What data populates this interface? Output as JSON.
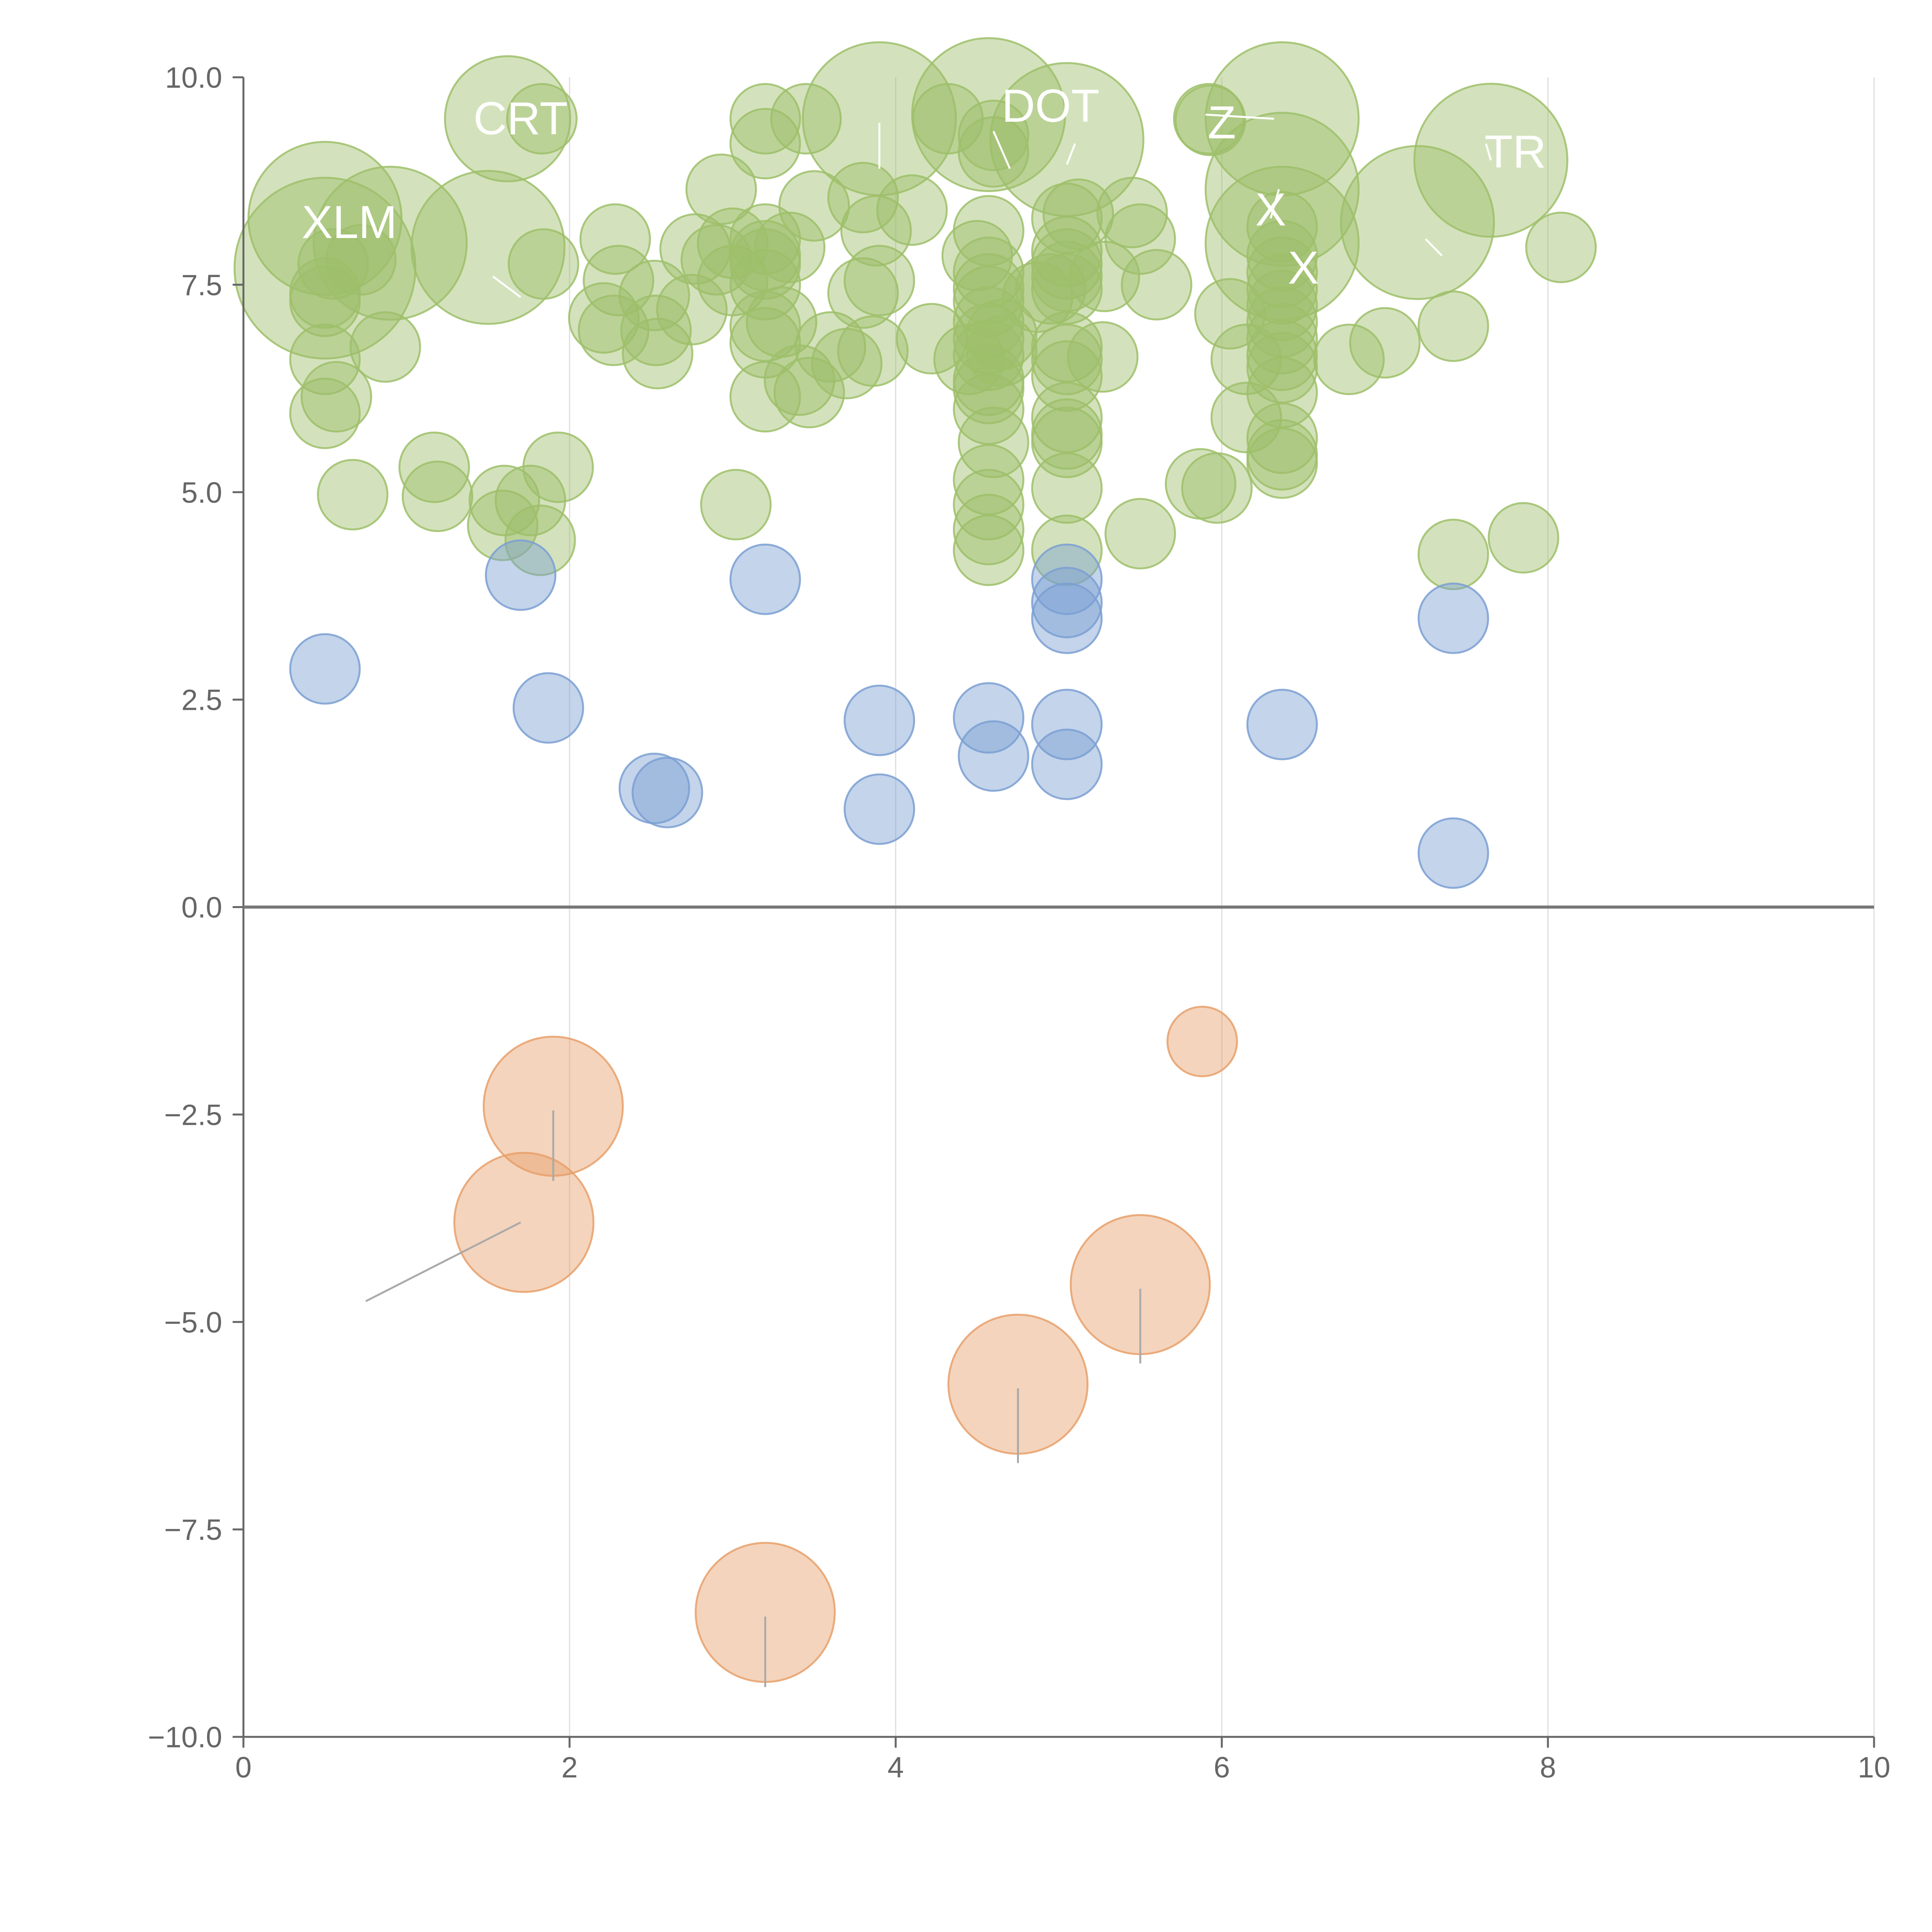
{
  "chart_data": {
    "type": "scatter",
    "title": "",
    "xlabel": "",
    "ylabel": "",
    "xlim": [
      0,
      10
    ],
    "ylim": [
      -10,
      10
    ],
    "x_ticks": [
      0,
      2,
      4,
      6,
      8,
      10
    ],
    "y_ticks": [
      -10,
      -7.5,
      -5,
      -2.5,
      0,
      2.5,
      5,
      7.5,
      10
    ],
    "x_tick_labels": [
      "0",
      "2",
      "4",
      "6",
      "8",
      "10"
    ],
    "y_tick_labels": [
      "−10.0",
      "−7.5",
      "−5.0",
      "−2.5",
      "0.0",
      "2.5",
      "5.0",
      "7.5",
      "10.0"
    ],
    "grid": "vertical",
    "legend": "none",
    "colors": {
      "green": "#9dbf6a",
      "blue": "#7b9fd2",
      "orange": "#e7a06b",
      "axis": "#666666",
      "grid": "#dddddd",
      "zero_line": "#777777"
    },
    "series": [
      {
        "color": "green",
        "points": [
          [
            0.5,
            8.3,
            1.1
          ],
          [
            0.5,
            7.7,
            1.3
          ],
          [
            0.55,
            7.75,
            0.5
          ],
          [
            0.5,
            7.4,
            0.5
          ],
          [
            0.5,
            7.3,
            0.5
          ],
          [
            0.5,
            6.6,
            0.5
          ],
          [
            0.57,
            6.15,
            0.5
          ],
          [
            0.5,
            5.95,
            0.5
          ],
          [
            0.72,
            7.8,
            0.5
          ],
          [
            0.9,
            8.0,
            1.1
          ],
          [
            0.87,
            6.75,
            0.5
          ],
          [
            0.67,
            4.97,
            0.5
          ],
          [
            1.17,
            5.3,
            0.5
          ],
          [
            1.19,
            4.95,
            0.5
          ],
          [
            1.5,
            7.95,
            1.1
          ],
          [
            1.6,
            4.9,
            0.5
          ],
          [
            1.59,
            4.6,
            0.5
          ],
          [
            1.76,
            4.9,
            0.5
          ],
          [
            1.82,
            4.42,
            0.5
          ],
          [
            1.84,
            7.75,
            0.5
          ],
          [
            1.93,
            5.3,
            0.5
          ],
          [
            1.62,
            9.5,
            0.9
          ],
          [
            1.83,
            9.5,
            0.5
          ],
          [
            2.28,
            8.05,
            0.5
          ],
          [
            2.3,
            7.55,
            0.5
          ],
          [
            2.21,
            7.1,
            0.5
          ],
          [
            2.27,
            6.95,
            0.5
          ],
          [
            2.52,
            7.37,
            0.5
          ],
          [
            2.53,
            6.95,
            0.5
          ],
          [
            2.54,
            6.67,
            0.5
          ],
          [
            2.77,
            7.93,
            0.5
          ],
          [
            2.9,
            7.8,
            0.5
          ],
          [
            2.75,
            7.2,
            0.5
          ],
          [
            2.93,
            8.65,
            0.5
          ],
          [
            3.0,
            8.0,
            0.5
          ],
          [
            3.0,
            7.55,
            0.5
          ],
          [
            3.02,
            4.85,
            0.5
          ],
          [
            3.2,
            8.05,
            0.5
          ],
          [
            3.2,
            7.85,
            0.5
          ],
          [
            3.2,
            7.75,
            0.5
          ],
          [
            3.2,
            7.5,
            0.5
          ],
          [
            3.2,
            7.0,
            0.5
          ],
          [
            3.2,
            6.8,
            0.5
          ],
          [
            3.2,
            6.15,
            0.5
          ],
          [
            3.2,
            9.5,
            0.5
          ],
          [
            3.2,
            9.2,
            0.5
          ],
          [
            3.35,
            7.95,
            0.5
          ],
          [
            3.3,
            7.05,
            0.5
          ],
          [
            3.45,
            9.5,
            0.5
          ],
          [
            3.41,
            6.35,
            0.5
          ],
          [
            3.47,
            6.2,
            0.5
          ],
          [
            3.5,
            8.45,
            0.5
          ],
          [
            3.6,
            6.75,
            0.5
          ],
          [
            3.7,
            6.55,
            0.5
          ],
          [
            3.8,
            8.55,
            0.5
          ],
          [
            3.8,
            7.4,
            0.5
          ],
          [
            3.9,
            7.55,
            0.5
          ],
          [
            3.88,
            8.15,
            0.5
          ],
          [
            3.86,
            6.7,
            0.5
          ],
          [
            3.9,
            9.5,
            1.1
          ],
          [
            4.1,
            8.4,
            0.5
          ],
          [
            4.22,
            6.85,
            0.5
          ],
          [
            4.32,
            9.5,
            0.5
          ],
          [
            4.5,
            7.85,
            0.5
          ],
          [
            4.45,
            6.6,
            0.5
          ],
          [
            4.57,
            9.55,
            1.1
          ],
          [
            4.6,
            9.1,
            0.5
          ],
          [
            4.6,
            9.3,
            0.5
          ],
          [
            4.57,
            8.15,
            0.5
          ],
          [
            4.57,
            7.65,
            0.5
          ],
          [
            4.57,
            7.45,
            0.5
          ],
          [
            4.57,
            7.3,
            0.5
          ],
          [
            4.57,
            7.05,
            0.5
          ],
          [
            4.57,
            6.85,
            0.5
          ],
          [
            4.57,
            6.65,
            0.5
          ],
          [
            4.57,
            6.35,
            0.5
          ],
          [
            4.57,
            6.25,
            0.5
          ],
          [
            4.57,
            6.0,
            0.5
          ],
          [
            4.6,
            5.6,
            0.5
          ],
          [
            4.57,
            5.15,
            0.5
          ],
          [
            4.57,
            4.85,
            0.5
          ],
          [
            4.57,
            4.55,
            0.5
          ],
          [
            4.57,
            4.3,
            0.5
          ],
          [
            4.65,
            6.9,
            0.5
          ],
          [
            4.65,
            6.7,
            0.5
          ],
          [
            4.87,
            7.35,
            0.5
          ],
          [
            4.95,
            7.45,
            0.5
          ],
          [
            5.05,
            9.25,
            1.1
          ],
          [
            5.05,
            8.3,
            0.5
          ],
          [
            5.05,
            7.9,
            0.5
          ],
          [
            5.05,
            7.75,
            0.5
          ],
          [
            5.05,
            7.6,
            0.5
          ],
          [
            5.05,
            7.45,
            0.5
          ],
          [
            5.05,
            6.75,
            0.5
          ],
          [
            5.05,
            6.6,
            0.5
          ],
          [
            5.05,
            6.4,
            0.5
          ],
          [
            5.05,
            5.9,
            0.5
          ],
          [
            5.05,
            5.7,
            0.5
          ],
          [
            5.05,
            5.6,
            0.5
          ],
          [
            5.05,
            5.05,
            0.5
          ],
          [
            5.05,
            4.3,
            0.5
          ],
          [
            5.12,
            8.35,
            0.5
          ],
          [
            5.28,
            7.6,
            0.5
          ],
          [
            5.27,
            6.63,
            0.5
          ],
          [
            5.45,
            8.37,
            0.5
          ],
          [
            5.5,
            8.05,
            0.5
          ],
          [
            5.6,
            7.5,
            0.5
          ],
          [
            5.5,
            4.5,
            0.5
          ],
          [
            5.92,
            9.5,
            0.5
          ],
          [
            5.93,
            9.48,
            0.5
          ],
          [
            5.87,
            5.1,
            0.5
          ],
          [
            5.97,
            5.05,
            0.5
          ],
          [
            6.05,
            7.15,
            0.5
          ],
          [
            6.15,
            6.6,
            0.5
          ],
          [
            6.15,
            5.9,
            0.5
          ],
          [
            6.37,
            9.5,
            1.1
          ],
          [
            6.37,
            8.65,
            1.1
          ],
          [
            6.37,
            8.0,
            1.1
          ],
          [
            6.37,
            8.2,
            0.5
          ],
          [
            6.37,
            7.85,
            0.5
          ],
          [
            6.37,
            7.65,
            0.5
          ],
          [
            6.37,
            7.45,
            0.5
          ],
          [
            6.37,
            7.25,
            0.5
          ],
          [
            6.37,
            7.05,
            0.5
          ],
          [
            6.37,
            6.85,
            0.5
          ],
          [
            6.37,
            6.65,
            0.5
          ],
          [
            6.37,
            6.5,
            0.5
          ],
          [
            6.37,
            6.2,
            0.5
          ],
          [
            6.37,
            5.65,
            0.5
          ],
          [
            6.37,
            5.45,
            0.5
          ],
          [
            6.37,
            5.35,
            0.5
          ],
          [
            6.78,
            6.6,
            0.5
          ],
          [
            7.0,
            6.8,
            0.5
          ],
          [
            7.2,
            8.25,
            1.1
          ],
          [
            7.42,
            7.0,
            0.5
          ],
          [
            7.42,
            4.25,
            0.5
          ],
          [
            7.65,
            9.0,
            1.1
          ],
          [
            7.85,
            4.45,
            0.5
          ],
          [
            8.08,
            7.95,
            0.5
          ]
        ]
      },
      {
        "color": "blue",
        "points": [
          [
            0.5,
            2.87,
            0.5
          ],
          [
            1.7,
            4.0,
            0.5
          ],
          [
            1.87,
            2.4,
            0.5
          ],
          [
            2.52,
            1.43,
            0.5
          ],
          [
            2.6,
            1.38,
            0.5
          ],
          [
            3.2,
            3.95,
            0.5
          ],
          [
            3.9,
            2.25,
            0.5
          ],
          [
            3.9,
            1.18,
            0.5
          ],
          [
            4.57,
            2.28,
            0.5
          ],
          [
            4.6,
            1.82,
            0.5
          ],
          [
            5.05,
            3.95,
            0.5
          ],
          [
            5.05,
            3.67,
            0.5
          ],
          [
            5.05,
            3.48,
            0.5
          ],
          [
            5.05,
            2.2,
            0.5
          ],
          [
            5.05,
            1.72,
            0.5
          ],
          [
            6.37,
            2.2,
            0.5
          ],
          [
            7.42,
            3.48,
            0.5
          ],
          [
            7.42,
            0.65,
            0.5
          ]
        ]
      },
      {
        "color": "orange",
        "points": [
          [
            1.9,
            -2.4,
            1.0
          ],
          [
            1.72,
            -3.8,
            1.0
          ],
          [
            3.2,
            -8.5,
            1.0
          ],
          [
            4.75,
            -5.75,
            1.0
          ],
          [
            5.5,
            -4.55,
            1.0
          ],
          [
            5.88,
            -1.62,
            0.5
          ]
        ]
      }
    ],
    "annotations": [
      {
        "text": "XLM",
        "x": 0.65,
        "y": 8.25
      },
      {
        "text": "CRT",
        "x": 1.7,
        "y": 9.5
      },
      {
        "text": "DOT",
        "x": 4.95,
        "y": 9.65
      },
      {
        "text": "Z",
        "x": 6.0,
        "y": 9.45
      },
      {
        "text": "X",
        "x": 6.3,
        "y": 8.4
      },
      {
        "text": "X",
        "x": 6.5,
        "y": 7.7
      },
      {
        "text": "TR",
        "x": 7.8,
        "y": 9.1
      }
    ],
    "leader_lines": [
      {
        "from": [
          0.75,
          -4.75
        ],
        "to": [
          1.7,
          -3.8
        ]
      },
      {
        "from": [
          1.9,
          -3.3
        ],
        "to": [
          1.9,
          -2.45
        ]
      },
      {
        "from": [
          3.2,
          -9.4
        ],
        "to": [
          3.2,
          -8.55
        ]
      },
      {
        "from": [
          4.75,
          -6.7
        ],
        "to": [
          4.75,
          -5.8
        ]
      },
      {
        "from": [
          5.5,
          -5.5
        ],
        "to": [
          5.5,
          -4.6
        ]
      },
      {
        "from": [
          1.53,
          7.6
        ],
        "to": [
          1.7,
          7.35
        ]
      },
      {
        "from": [
          3.9,
          8.9
        ],
        "to": [
          3.9,
          9.45
        ]
      },
      {
        "from": [
          4.6,
          9.35
        ],
        "to": [
          4.7,
          8.9
        ]
      },
      {
        "from": [
          5.05,
          8.95
        ],
        "to": [
          5.1,
          9.2
        ]
      },
      {
        "from": [
          5.9,
          9.55
        ],
        "to": [
          6.32,
          9.5
        ]
      },
      {
        "from": [
          6.3,
          8.3
        ],
        "to": [
          6.35,
          8.65
        ]
      },
      {
        "from": [
          7.25,
          8.05
        ],
        "to": [
          7.35,
          7.85
        ]
      },
      {
        "from": [
          7.62,
          9.2
        ],
        "to": [
          7.65,
          9.0
        ]
      }
    ]
  }
}
